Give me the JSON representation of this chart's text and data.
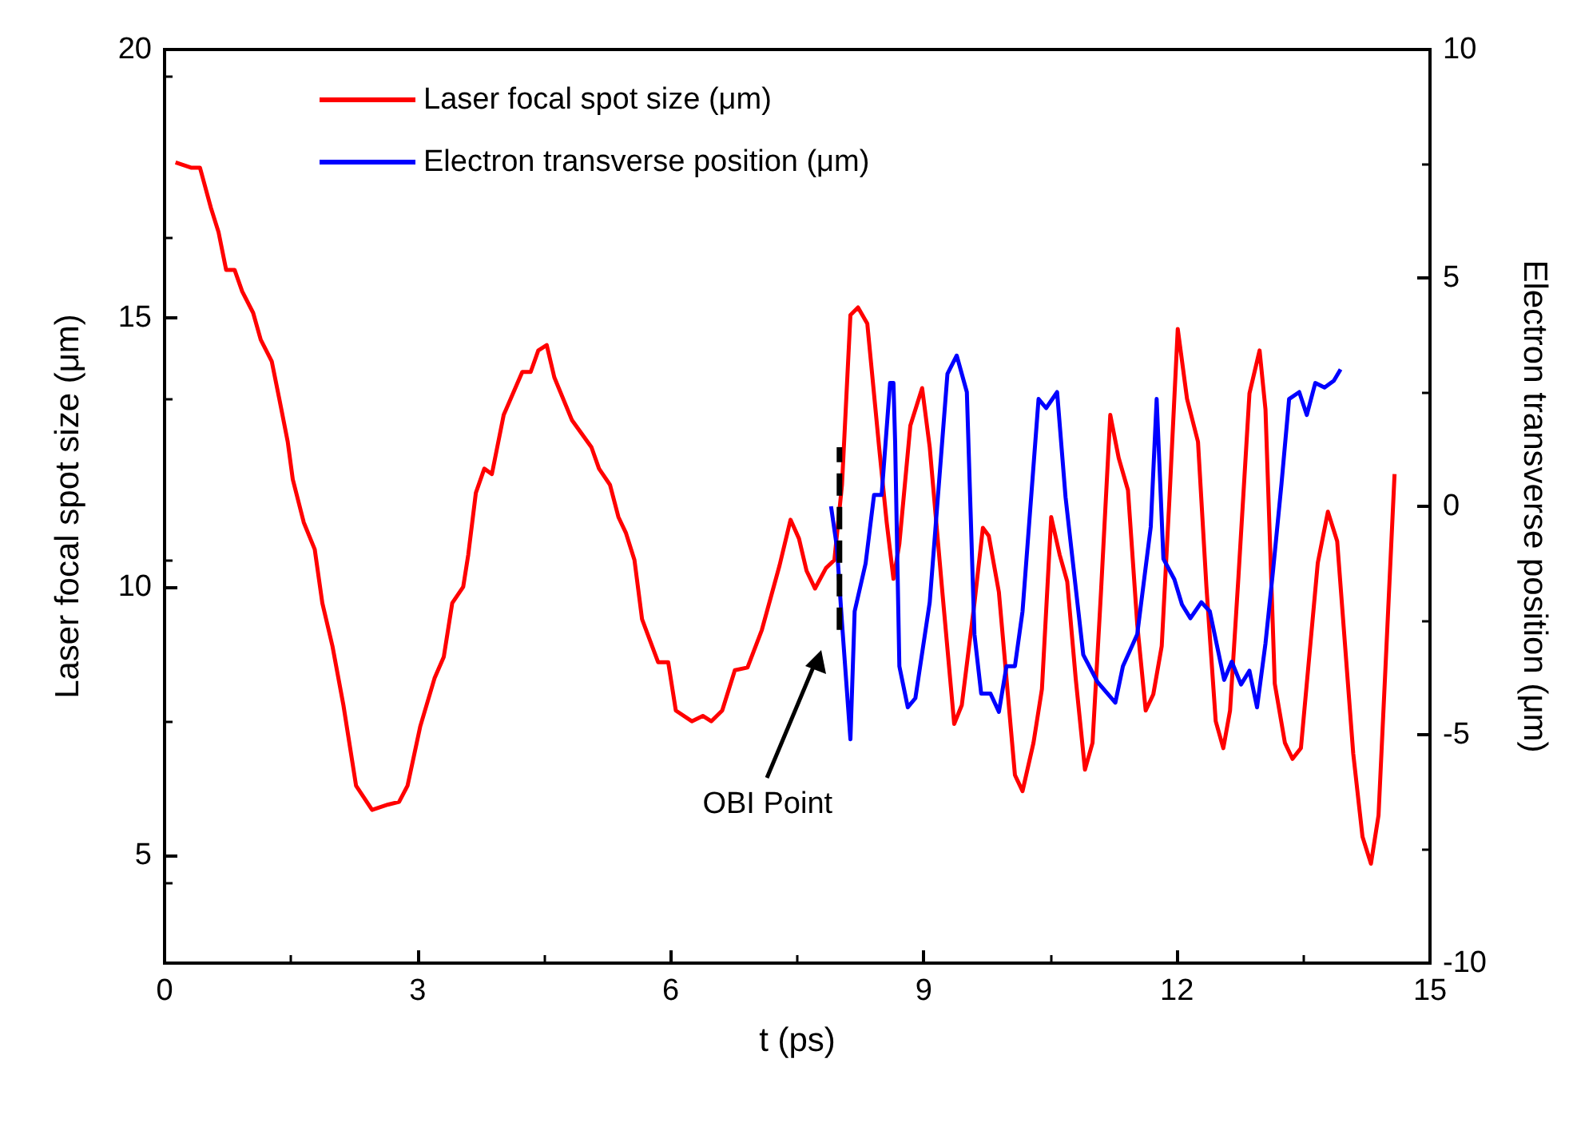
{
  "chart_data": {
    "type": "line",
    "xlabel": "t (ps)",
    "ylabel": "Laser focal spot size (μm)",
    "y2label": "Electron transverse position (μm)",
    "xlim": [
      0,
      15
    ],
    "xticks": [
      0,
      3,
      6,
      9,
      12,
      15
    ],
    "ylim": [
      3,
      20
    ],
    "yticks": [
      5,
      10,
      15,
      20
    ],
    "y2lim": [
      -10,
      10
    ],
    "y2ticks": [
      -10,
      -5,
      0,
      5,
      10
    ],
    "grid": false,
    "legend": "top left",
    "marker": "none",
    "line_style": "solid",
    "annotations": [
      "OBI Point"
    ],
    "series": [
      {
        "name": "Laser focal spot size (μm)",
        "color": "#ff0000",
        "x": [
          0.13,
          0.32,
          0.42,
          0.55,
          0.64,
          0.73,
          0.83,
          0.92,
          1.05,
          1.14,
          1.27,
          1.36,
          1.46,
          1.52,
          1.65,
          1.78,
          1.87,
          1.99,
          2.12,
          2.27,
          2.46,
          2.65,
          2.78,
          2.88,
          3.03,
          3.2,
          3.31,
          3.41,
          3.54,
          3.6,
          3.69,
          3.79,
          3.88,
          4.02,
          4.24,
          4.34,
          4.43,
          4.53,
          4.62,
          4.83,
          5.06,
          5.15,
          5.28,
          5.38,
          5.47,
          5.57,
          5.66,
          5.85,
          5.97,
          6.06,
          6.25,
          6.38,
          6.48,
          6.61,
          6.76,
          6.91,
          7.08,
          7.29,
          7.42,
          7.52,
          7.61,
          7.71,
          7.84,
          7.94,
          8.03,
          8.13,
          8.22,
          8.33,
          8.47,
          8.56,
          8.64,
          8.71,
          8.84,
          8.98,
          9.07,
          9.22,
          9.36,
          9.45,
          9.6,
          9.7,
          9.77,
          9.89,
          10.08,
          10.17,
          10.3,
          10.4,
          10.51,
          10.61,
          10.7,
          10.8,
          10.91,
          11.0,
          11.1,
          11.21,
          11.31,
          11.42,
          11.53,
          11.63,
          11.72,
          11.82,
          11.91,
          12.01,
          12.12,
          12.25,
          12.35,
          12.46,
          12.55,
          12.63,
          12.73,
          12.86,
          12.98,
          13.05,
          13.16,
          13.28,
          13.37,
          13.47,
          13.67,
          13.79,
          13.9,
          14.09,
          14.2,
          14.3,
          14.39,
          14.58
        ],
        "values": [
          17.9,
          17.8,
          17.8,
          17.05,
          16.6,
          15.9,
          15.9,
          15.5,
          15.1,
          14.6,
          14.2,
          13.5,
          12.7,
          12.0,
          11.2,
          10.7,
          9.7,
          8.9,
          7.8,
          6.3,
          5.85,
          5.95,
          6.0,
          6.3,
          7.4,
          8.3,
          8.7,
          9.7,
          10.0,
          10.6,
          11.75,
          12.2,
          12.1,
          13.2,
          14.0,
          14.0,
          14.4,
          14.5,
          13.9,
          13.1,
          12.6,
          12.2,
          11.9,
          11.3,
          11.0,
          10.5,
          9.4,
          8.6,
          8.6,
          7.7,
          7.5,
          7.6,
          7.5,
          7.7,
          8.45,
          8.5,
          9.2,
          10.4,
          11.25,
          10.9,
          10.3,
          9.97,
          10.35,
          10.5,
          11.9,
          15.06,
          15.2,
          14.9,
          12.6,
          11.2,
          10.15,
          10.8,
          13.0,
          13.7,
          12.6,
          9.9,
          7.45,
          7.8,
          9.7,
          11.1,
          10.95,
          9.9,
          6.5,
          6.2,
          7.1,
          8.1,
          11.3,
          10.6,
          10.1,
          8.3,
          6.6,
          7.1,
          9.9,
          13.2,
          12.4,
          11.8,
          9.3,
          7.7,
          8.0,
          8.9,
          11.6,
          14.8,
          13.5,
          12.7,
          10.0,
          7.5,
          7.0,
          7.7,
          10.2,
          13.6,
          14.4,
          13.3,
          8.2,
          7.1,
          6.8,
          7.0,
          10.45,
          11.4,
          10.85,
          6.9,
          5.35,
          4.85,
          5.75,
          12.1
        ]
      },
      {
        "name": "Electron transverse position (μm)",
        "color": "#0000ff",
        "axis": "y2",
        "x": [
          7.9,
          7.97,
          8.03,
          8.13,
          8.18,
          8.31,
          8.41,
          8.5,
          8.6,
          8.64,
          8.66,
          8.71,
          8.81,
          8.9,
          9.07,
          9.28,
          9.39,
          9.51,
          9.6,
          9.68,
          9.79,
          9.89,
          9.98,
          10.08,
          10.17,
          10.36,
          10.45,
          10.58,
          10.68,
          10.89,
          11.06,
          11.27,
          11.36,
          11.53,
          11.69,
          11.76,
          11.84,
          11.97,
          12.06,
          12.16,
          12.29,
          12.39,
          12.56,
          12.65,
          12.76,
          12.86,
          12.95,
          13.05,
          13.14,
          13.24,
          13.33,
          13.45,
          13.54,
          13.64,
          13.75,
          13.86,
          13.94
        ],
        "values": [
          0.0,
          -0.9,
          -2.55,
          -5.1,
          -2.3,
          -1.25,
          0.25,
          0.25,
          2.7,
          2.7,
          1.4,
          -3.5,
          -4.4,
          -4.2,
          -2.1,
          2.9,
          3.3,
          2.5,
          -2.8,
          -4.1,
          -4.1,
          -4.5,
          -3.5,
          -3.5,
          -2.3,
          2.35,
          2.15,
          2.5,
          0.2,
          -3.25,
          -3.85,
          -4.3,
          -3.5,
          -2.8,
          -0.45,
          2.35,
          -1.15,
          -1.6,
          -2.15,
          -2.45,
          -2.1,
          -2.3,
          -3.8,
          -3.4,
          -3.9,
          -3.6,
          -4.4,
          -3.0,
          -1.4,
          0.5,
          2.35,
          2.5,
          2.0,
          2.7,
          2.6,
          2.75,
          3.0
        ]
      },
      {
        "color": "#000000",
        "line_style": "dashed",
        "x": [
          8.0,
          8.0
        ],
        "values": [
          9.2,
          12.6
        ]
      }
    ]
  }
}
